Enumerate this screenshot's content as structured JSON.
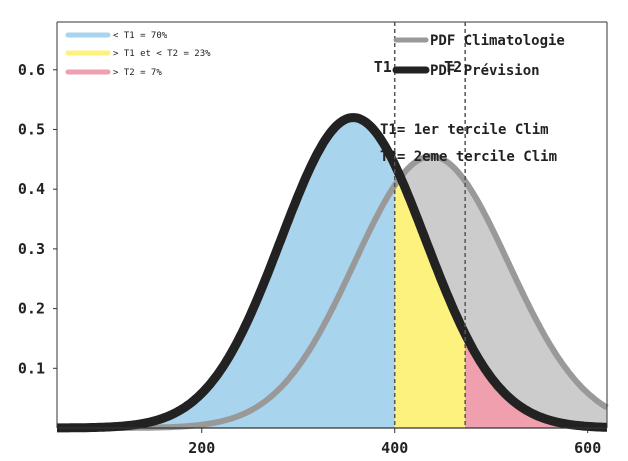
{
  "chart_data": {
    "type": "area",
    "title": "",
    "xlabel": "",
    "ylabel": "",
    "xlim": [
      50,
      620
    ],
    "ylim": [
      0,
      0.68
    ],
    "x_ticks": [
      {
        "value": 200,
        "label": "200"
      },
      {
        "value": 400,
        "label": "400"
      },
      {
        "value": 600,
        "label": "600"
      }
    ],
    "y_ticks": [
      {
        "value": 0.1,
        "label": "0.1"
      },
      {
        "value": 0.2,
        "label": "0.2"
      },
      {
        "value": 0.3,
        "label": "0.3"
      },
      {
        "value": 0.4,
        "label": "0.4"
      },
      {
        "value": 0.5,
        "label": "0.5"
      },
      {
        "value": 0.6,
        "label": "0.6"
      }
    ],
    "grid": false,
    "series": [
      {
        "name": "PDF Climatologie",
        "mean": 438,
        "sd": 80,
        "peak": 0.455,
        "color": "#999999"
      },
      {
        "name": "PDF Prévision",
        "mean": 357,
        "sd": 75,
        "peak": 0.52,
        "color": "#222222"
      }
    ],
    "thresholds": [
      {
        "name": "T1",
        "value": 400,
        "label": "T1"
      },
      {
        "name": "T2",
        "value": 473,
        "label": "T2"
      }
    ],
    "regions": [
      {
        "label": "< T1 = 70%",
        "color": "#a9d4ee"
      },
      {
        "label": "> T1 et < T2 = 23%",
        "color": "#fdf27d"
      },
      {
        "label": "> T2 = 7%",
        "color": "#ef9fad"
      }
    ],
    "annotations": [
      "T1= 1er tercile Clim",
      "T2= 2eme tercile Clim"
    ],
    "legend_position": "top-right",
    "region_legend_position": "top-left"
  }
}
